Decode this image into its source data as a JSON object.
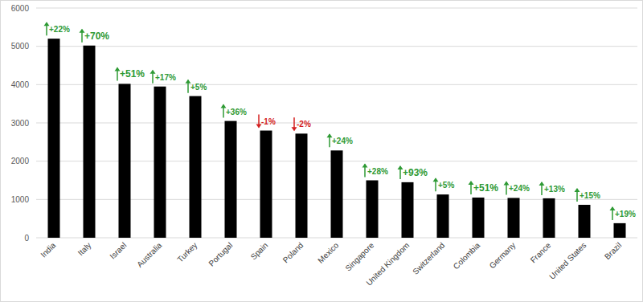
{
  "chart_data": {
    "type": "bar",
    "categories": [
      "India",
      "Italy",
      "Israel",
      "Australia",
      "Turkey",
      "Portugal",
      "Spain",
      "Poland",
      "Mexico",
      "Singapore",
      "United Kingdom",
      "Switzerland",
      "Colombia",
      "Germany",
      "France",
      "United States",
      "Brazil"
    ],
    "values": [
      5200,
      5020,
      4020,
      3950,
      3700,
      3050,
      2800,
      2720,
      2280,
      1500,
      1450,
      1130,
      1050,
      1040,
      1030,
      860,
      380
    ],
    "changes": [
      22,
      70,
      51,
      17,
      5,
      36,
      -1,
      -2,
      24,
      28,
      93,
      5,
      51,
      24,
      13,
      15,
      19
    ],
    "change_labels": [
      "+22%",
      "+70%",
      "+51%",
      "+17%",
      "+5%",
      "+36%",
      "-1%",
      "-2%",
      "+24%",
      "+28%",
      "+93%",
      "+5%",
      "+51%",
      "+24%",
      "+13%",
      "+15%",
      "+19%"
    ],
    "color": "#000000",
    "ylim": [
      0,
      6000
    ],
    "yticks": [
      0,
      1000,
      2000,
      3000,
      4000,
      5000,
      6000
    ],
    "grid": true
  }
}
